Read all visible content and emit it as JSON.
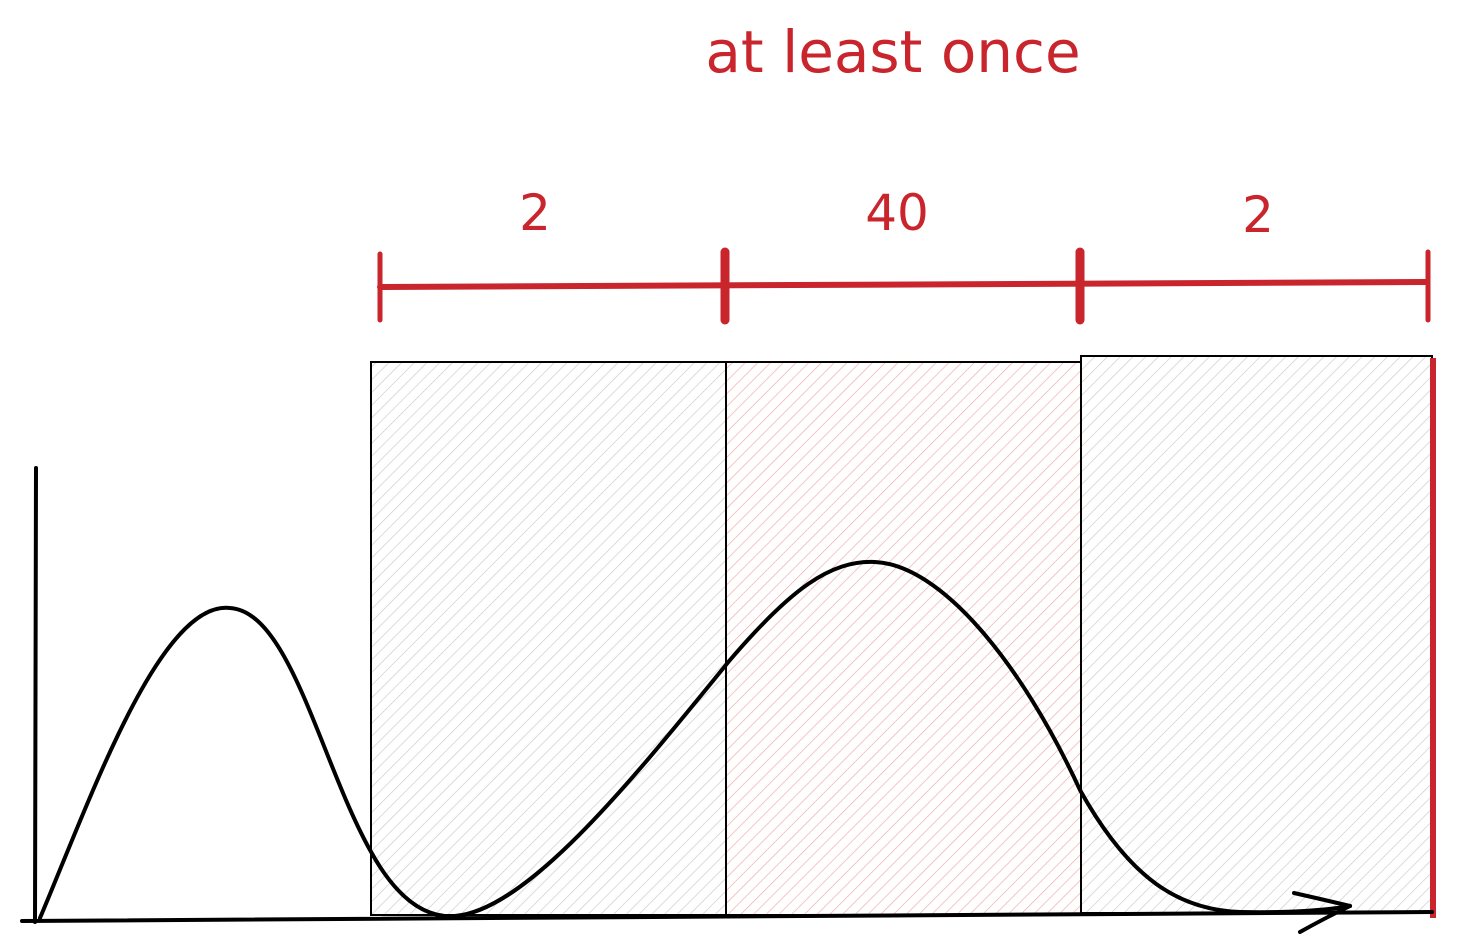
{
  "title": "at least once",
  "segments": [
    {
      "label": "2",
      "highlighted": false
    },
    {
      "label": "40",
      "highlighted": true
    },
    {
      "label": "2",
      "highlighted": false
    }
  ],
  "colors": {
    "accent": "#c9252c",
    "ink": "#000000",
    "gray_hatch": "#c9c9c9",
    "red_hatch": "#f2a7a7",
    "background": "#ffffff"
  }
}
